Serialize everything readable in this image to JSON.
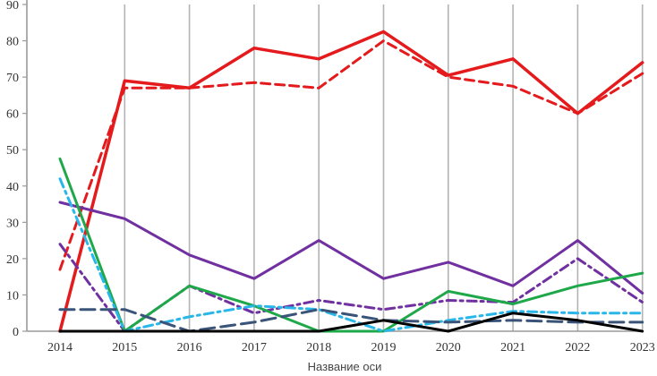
{
  "chart_data": {
    "type": "line",
    "title": "",
    "xlabel": "Название оси",
    "ylabel": "",
    "ylim": [
      0,
      90
    ],
    "yticks": [
      0,
      10,
      20,
      30,
      40,
      50,
      60,
      70,
      80,
      90
    ],
    "ytick_labels": [
      "0",
      "10",
      "20",
      "30",
      "40",
      "50",
      "60",
      "70",
      "80",
      "90"
    ],
    "categories": [
      "2014",
      "2015",
      "2016",
      "2017",
      "2018",
      "2019",
      "2020",
      "2021",
      "2022",
      "2023"
    ],
    "grid": "vertical",
    "legend": "none",
    "series": [
      {
        "color": "#e41a1c",
        "dash": "solid",
        "width": 3.5,
        "values": [
          0,
          69,
          67,
          78,
          75,
          82.5,
          70.5,
          75,
          60,
          74
        ]
      },
      {
        "color": "#e41a1c",
        "dash": "dashed",
        "width": 3,
        "values": [
          17,
          67,
          67,
          68.5,
          67,
          80,
          70,
          67.5,
          60,
          71
        ]
      },
      {
        "color": "#7030a0",
        "dash": "solid",
        "width": 3,
        "values": [
          35.5,
          31,
          21,
          14.5,
          25,
          14.5,
          19,
          12.5,
          25,
          10.5
        ]
      },
      {
        "color": "#7030a0",
        "dash": "dashdot",
        "width": 3,
        "values": [
          24,
          0,
          12.5,
          5,
          8.5,
          6,
          8.5,
          8,
          20,
          8
        ]
      },
      {
        "color": "#1fa84a",
        "dash": "solid",
        "width": 3,
        "values": [
          47.5,
          0,
          12.5,
          7,
          0,
          0,
          11,
          7.5,
          12.5,
          16
        ]
      },
      {
        "color": "#29b6e8",
        "dash": "dashdot",
        "width": 3,
        "values": [
          42,
          0,
          4,
          7,
          6,
          0,
          3,
          5.5,
          5,
          5
        ]
      },
      {
        "color": "#3a5378",
        "dash": "longdash",
        "width": 3,
        "values": [
          6,
          6,
          0,
          2.5,
          6,
          3,
          2.5,
          3,
          2.5,
          2.5
        ]
      },
      {
        "color": "#000000",
        "dash": "solid",
        "width": 3,
        "values": [
          0,
          0,
          0,
          0,
          0,
          3,
          0,
          5,
          3,
          0
        ]
      }
    ]
  }
}
